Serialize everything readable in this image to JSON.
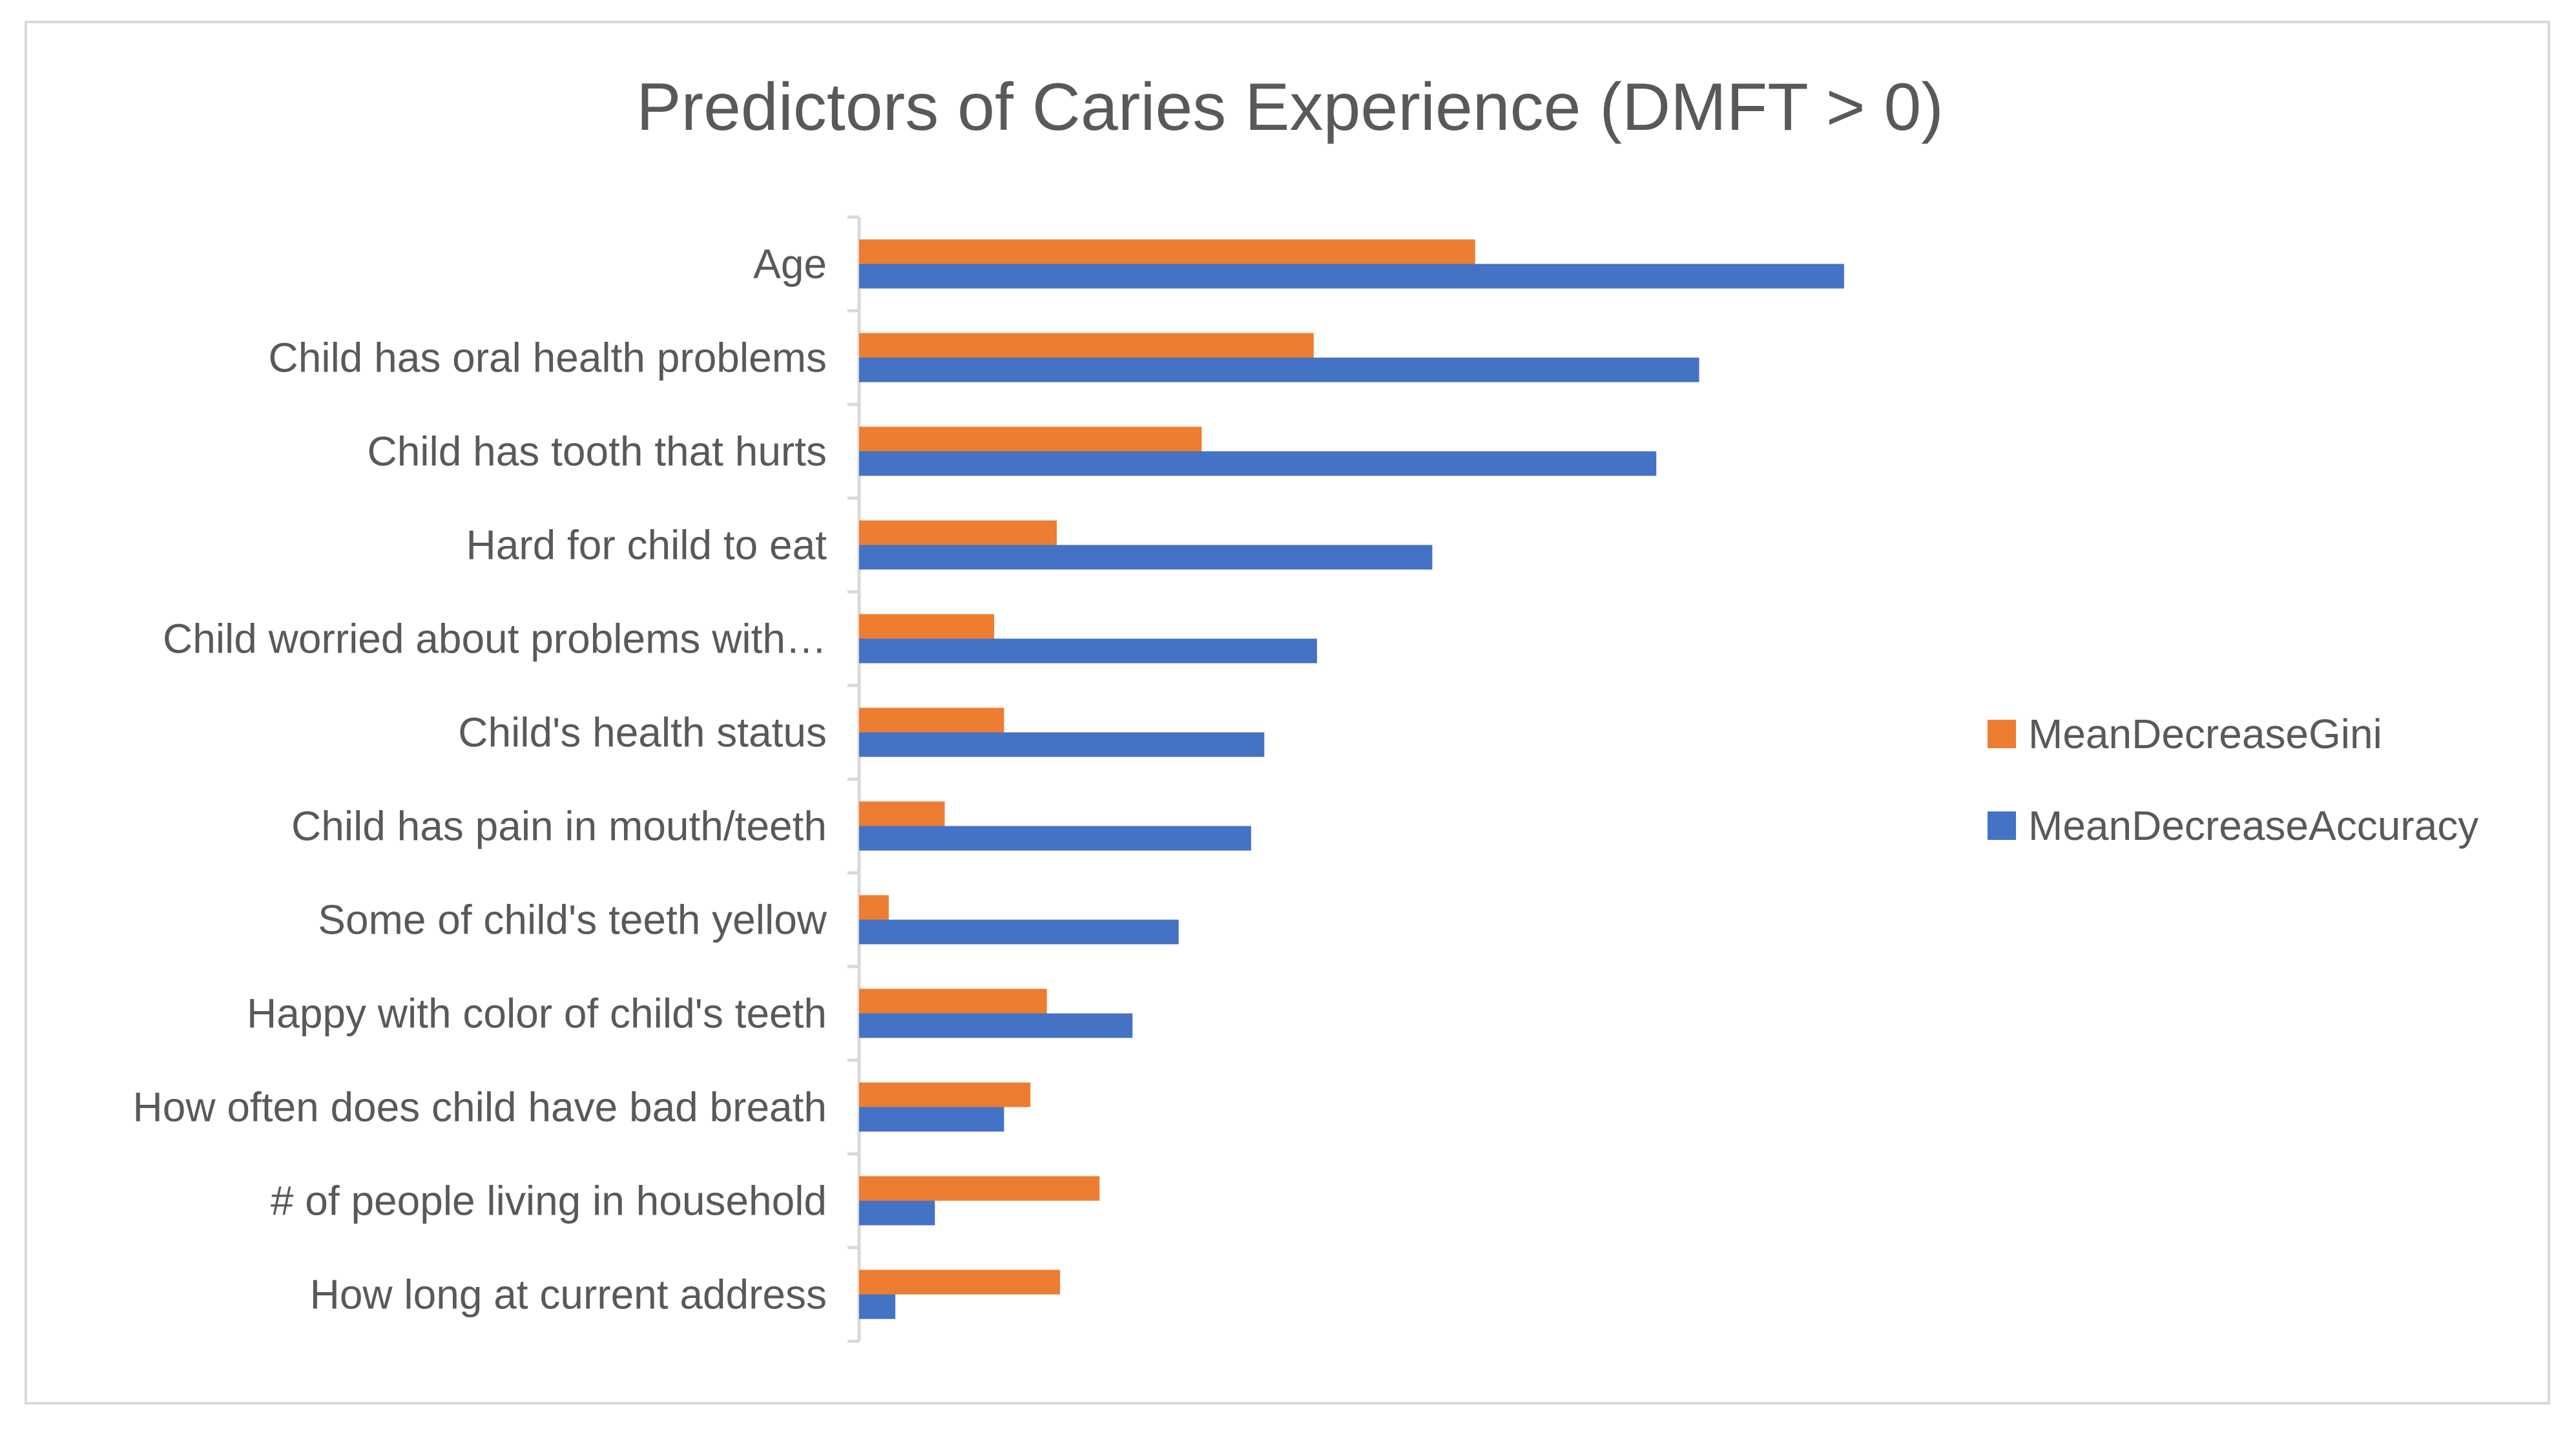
{
  "chart_data": {
    "type": "bar",
    "orientation": "horizontal",
    "title": "Predictors of Caries Experience (DMFT > 0)",
    "xlabel": "",
    "ylabel": "",
    "xlim": [
      0,
      30
    ],
    "grid": false,
    "legend_position": "right",
    "categories": [
      "Age",
      "Child has oral health problems",
      "Child has tooth that hurts",
      "Hard for child to eat",
      "Child worried about problems with…",
      "Child's health status",
      "Child has pain in mouth/teeth",
      "Some of child's teeth yellow",
      "Happy with color of child's teeth",
      "How often does child have bad breath",
      "# of people living in household",
      "How long at current address"
    ],
    "series": [
      {
        "name": "MeanDecreaseGini",
        "color": "#ED7D31",
        "values": [
          18.7,
          13.8,
          10.4,
          6.0,
          4.1,
          4.4,
          2.6,
          0.9,
          5.7,
          5.2,
          7.3,
          6.1
        ]
      },
      {
        "name": "MeanDecreaseAccuracy",
        "color": "#4472C4",
        "values": [
          29.9,
          25.5,
          24.2,
          17.4,
          13.9,
          12.3,
          11.9,
          9.7,
          8.3,
          4.4,
          2.3,
          1.1
        ]
      }
    ]
  }
}
